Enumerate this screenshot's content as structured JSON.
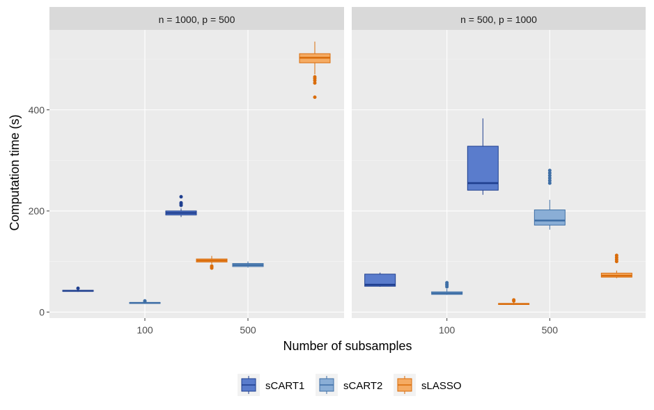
{
  "chart_data": {
    "type": "box",
    "xlabel": "Number of subsamples",
    "ylabel": "Computation time (s)",
    "y_ticks": [
      0,
      200,
      400
    ],
    "x_categories": [
      "100",
      "500"
    ],
    "grid": true,
    "legend_position": "bottom",
    "series": [
      {
        "name": "sCART1",
        "fill": "#5a7ccc",
        "line": "#1f3f8f"
      },
      {
        "name": "sCART2",
        "fill": "#8aaed6",
        "line": "#3f6fa6"
      },
      {
        "name": "sLASSO",
        "fill": "#f5ab63",
        "line": "#d96c0b"
      }
    ],
    "panels": [
      {
        "title": "n = 1000, p = 500",
        "boxes": [
          {
            "x": "100",
            "series": "sCART1",
            "min": 40,
            "q1": 41,
            "median": 42,
            "q3": 43,
            "max": 44,
            "outliers": [
              47
            ]
          },
          {
            "x": "100",
            "series": "sCART2",
            "min": 16,
            "q1": 17.5,
            "median": 18,
            "q3": 19,
            "max": 20,
            "outliers": [
              21,
              22
            ]
          },
          {
            "x": "100",
            "series": "sLASSO",
            "min": 95,
            "q1": 99,
            "median": 102,
            "q3": 105,
            "max": 111,
            "outliers": [
              87,
              89,
              91
            ]
          },
          {
            "x": "500",
            "series": "sCART1",
            "min": 188,
            "q1": 192,
            "median": 196,
            "q3": 200,
            "max": 205,
            "outliers": [
              211,
              214,
              216,
              228
            ]
          },
          {
            "x": "500",
            "series": "sCART2",
            "min": 88,
            "q1": 90,
            "median": 93,
            "q3": 96,
            "max": 100,
            "outliers": []
          },
          {
            "x": "500",
            "series": "sLASSO",
            "min": 470,
            "q1": 493,
            "median": 503,
            "q3": 511,
            "max": 535,
            "outliers": [
              425,
              453,
              458,
              462,
              465
            ]
          }
        ]
      },
      {
        "title": "n = 500, p = 1000",
        "boxes": [
          {
            "x": "100",
            "series": "sCART1",
            "min": 50,
            "q1": 51,
            "median": 54,
            "q3": 75,
            "max": 78,
            "outliers": []
          },
          {
            "x": "100",
            "series": "sCART2",
            "min": 34,
            "q1": 35,
            "median": 37,
            "q3": 40,
            "max": 46,
            "outliers": [
              50,
              53,
              55,
              58
            ]
          },
          {
            "x": "100",
            "series": "sLASSO",
            "min": 14,
            "q1": 15,
            "median": 16,
            "q3": 17,
            "max": 19,
            "outliers": [
              22,
              24
            ]
          },
          {
            "x": "500",
            "series": "sCART1",
            "min": 232,
            "q1": 241,
            "median": 255,
            "q3": 328,
            "max": 383,
            "outliers": []
          },
          {
            "x": "500",
            "series": "sCART2",
            "min": 163,
            "q1": 172,
            "median": 181,
            "q3": 202,
            "max": 222,
            "outliers": [
              255,
              260,
              265,
              270,
              275,
              280
            ]
          },
          {
            "x": "500",
            "series": "sLASSO",
            "min": 67,
            "q1": 69,
            "median": 72,
            "q3": 77,
            "max": 82,
            "outliers": [
              100,
              104,
              108,
              112
            ]
          }
        ]
      }
    ]
  }
}
